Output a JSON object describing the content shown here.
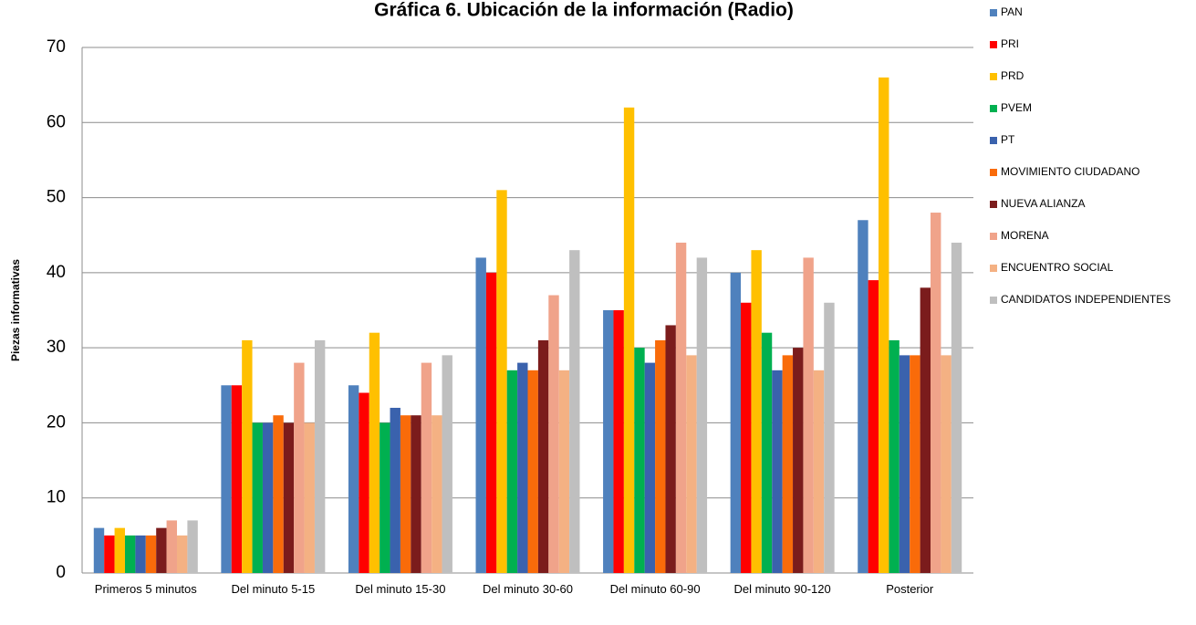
{
  "chart_data": {
    "type": "bar",
    "title": "Gráfica 6. Ubicación de la información (Radio)",
    "y_label": "Piezas informativas",
    "categories": [
      "Primeros 5 minutos",
      "Del minuto 5-15",
      "Del minuto 15-30",
      "Del minuto 30-60",
      "Del minuto 60-90",
      "Del minuto 90-120",
      "Posterior"
    ],
    "series": [
      {
        "name": "PAN",
        "color": "#4f81bd",
        "values": [
          6,
          25,
          25,
          42,
          35,
          40,
          47
        ]
      },
      {
        "name": "PRI",
        "color": "#ff0000",
        "values": [
          5,
          25,
          24,
          40,
          35,
          36,
          39
        ]
      },
      {
        "name": "PRD",
        "color": "#ffc000",
        "values": [
          6,
          31,
          32,
          51,
          62,
          43,
          66
        ]
      },
      {
        "name": "PVEM",
        "color": "#00b050",
        "values": [
          5,
          20,
          20,
          27,
          30,
          32,
          31
        ]
      },
      {
        "name": "PT",
        "color": "#3a62ad",
        "values": [
          5,
          20,
          22,
          28,
          28,
          27,
          29
        ]
      },
      {
        "name": "MOVIMIENTO CIUDADANO",
        "color": "#f96b0a",
        "values": [
          5,
          21,
          21,
          27,
          31,
          29,
          29
        ]
      },
      {
        "name": "NUEVA ALIANZA",
        "color": "#7b1c1c",
        "values": [
          6,
          20,
          21,
          31,
          33,
          30,
          38
        ]
      },
      {
        "name": "MORENA",
        "color": "#f0a38a",
        "values": [
          7,
          28,
          28,
          37,
          44,
          42,
          48
        ]
      },
      {
        "name": "ENCUENTRO SOCIAL",
        "color": "#f4b183",
        "values": [
          5,
          20,
          21,
          27,
          29,
          27,
          29
        ]
      },
      {
        "name": "CANDIDATOS INDEPENDIENTES",
        "color": "#bfbfbf",
        "values": [
          7,
          31,
          29,
          43,
          42,
          36,
          44
        ]
      }
    ],
    "ylim": [
      0,
      70
    ],
    "yticks": [
      0,
      10,
      20,
      30,
      40,
      50,
      60,
      70
    ],
    "grid": true,
    "legend": "right"
  }
}
